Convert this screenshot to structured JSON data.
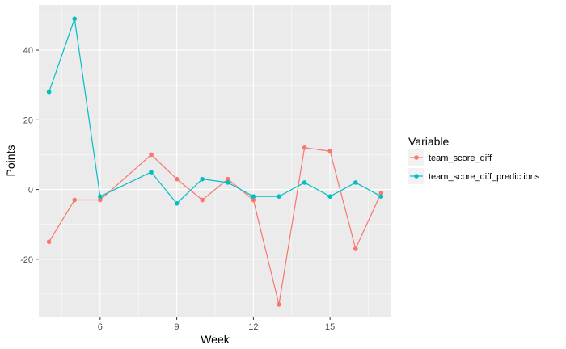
{
  "chart_data": {
    "type": "line",
    "title": "",
    "xlabel": "Week",
    "ylabel": "Points",
    "xlim": [
      3.6,
      17.4
    ],
    "ylim": [
      -36.5,
      53.0
    ],
    "x_ticks": [
      6,
      9,
      12,
      15
    ],
    "x_tick_labels": [
      "6",
      "9",
      "12",
      "15"
    ],
    "y_ticks": [
      -20,
      0,
      20,
      40
    ],
    "y_tick_labels": [
      "-20",
      "0",
      "20",
      "40"
    ],
    "grid": true,
    "legend": {
      "title": "Variable",
      "placement": "right"
    },
    "series": [
      {
        "name": "team_score_diff",
        "color": "#F8766D",
        "x": [
          4,
          5,
          6,
          8,
          9,
          10,
          11,
          12,
          13,
          14,
          15,
          16,
          17
        ],
        "values": [
          -15,
          -3,
          -3,
          10,
          3,
          -3,
          3,
          -3,
          -33,
          12,
          11,
          -17,
          -1
        ]
      },
      {
        "name": "team_score_diff_predictions",
        "color": "#00BFC4",
        "x": [
          4,
          5,
          6,
          8,
          9,
          10,
          11,
          12,
          13,
          14,
          15,
          16,
          17
        ],
        "values": [
          28,
          49,
          -2,
          5,
          -4,
          3,
          2,
          -2,
          -2,
          2,
          -2,
          2,
          -2
        ]
      }
    ]
  }
}
